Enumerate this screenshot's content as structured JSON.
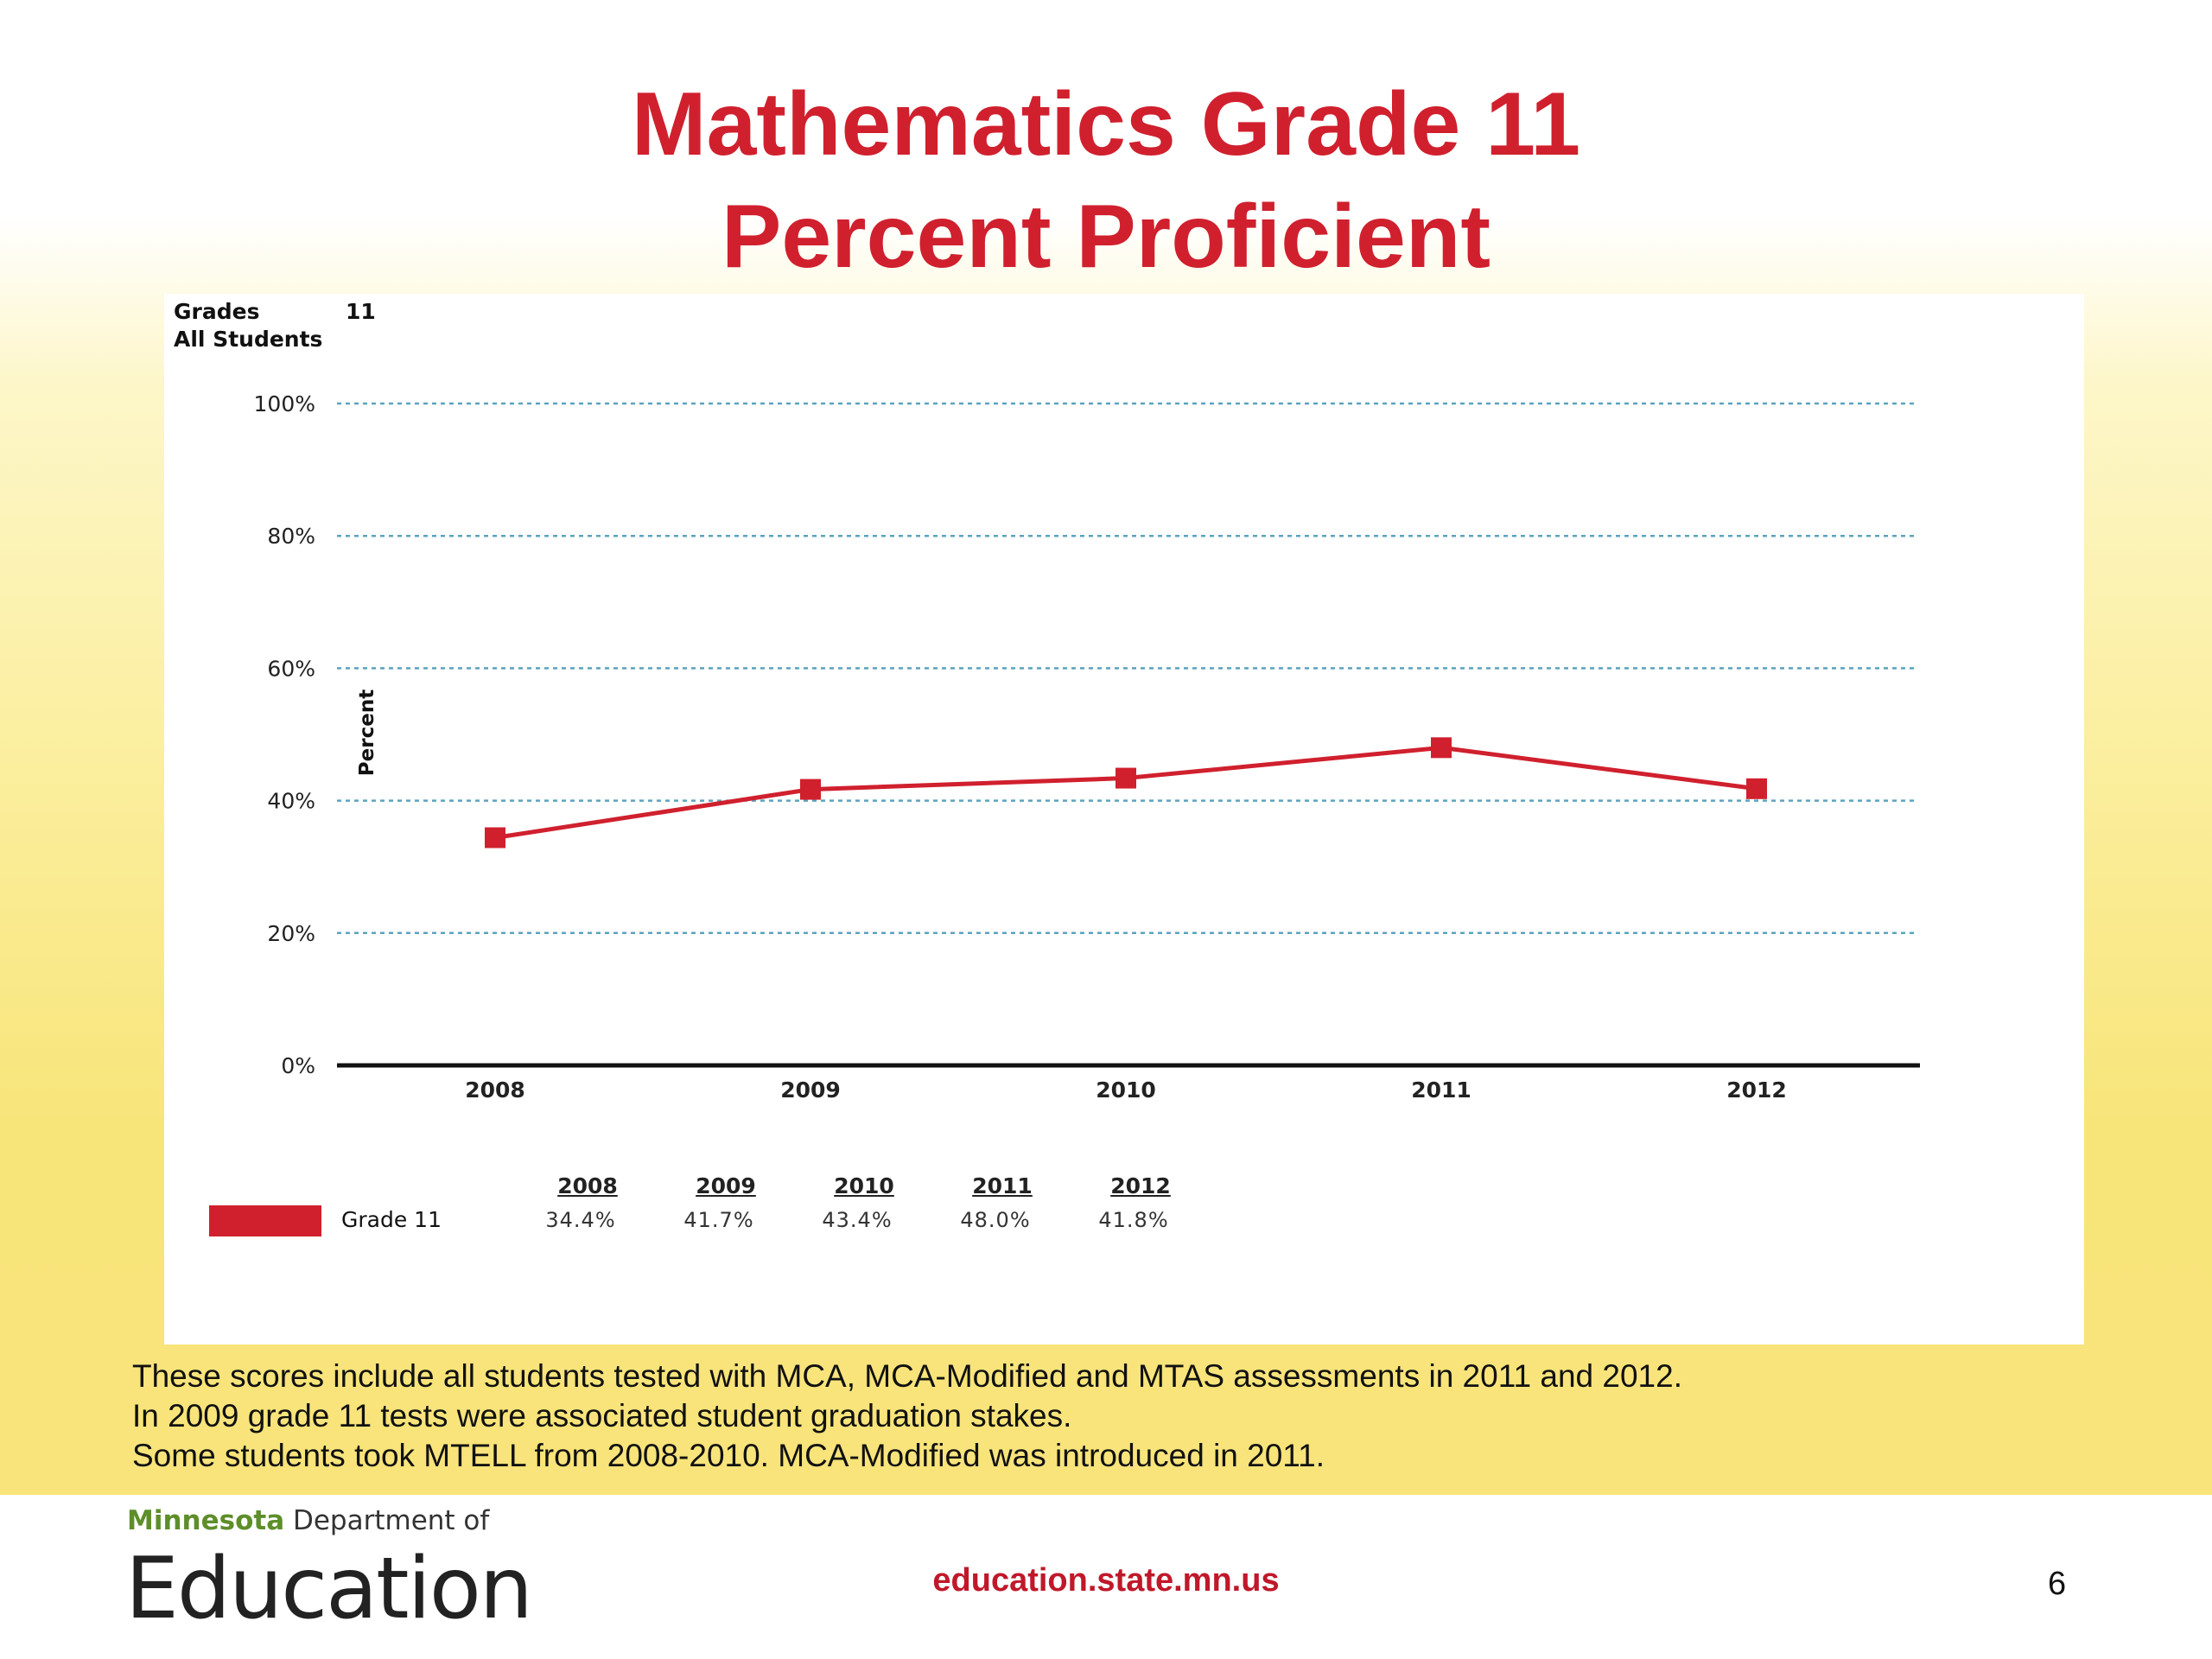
{
  "title": {
    "line1": "Mathematics Grade 11",
    "line2": "Percent Proficient"
  },
  "meta": {
    "grades_label": "Grades",
    "grades_value": "11",
    "group": "All Students"
  },
  "chart_data": {
    "type": "line",
    "title": "Mathematics Grade 11 Percent Proficient",
    "xlabel": "",
    "ylabel": "Percent",
    "categories": [
      "2008",
      "2009",
      "2010",
      "2011",
      "2012"
    ],
    "series": [
      {
        "name": "Grade 11",
        "values": [
          34.4,
          41.7,
          43.4,
          48.0,
          41.8
        ],
        "color": "#d0202e"
      }
    ],
    "ylim": [
      0,
      100
    ],
    "yticks": [
      "0%",
      "20%",
      "40%",
      "60%",
      "80%",
      "100%"
    ],
    "grid": "dashed horizontal",
    "legend_position": "bottom-left"
  },
  "table": {
    "series_label": "Grade 11",
    "years": [
      "2008",
      "2009",
      "2010",
      "2011",
      "2012"
    ],
    "values": [
      "34.4%",
      "41.7%",
      "43.4%",
      "48.0%",
      "41.8%"
    ]
  },
  "notes": [
    "These scores include all students tested with MCA, MCA-Modified and MTAS assessments in 2011 and 2012.",
    "In 2009 grade 11 tests were associated student graduation stakes.",
    "Some students took MTELL from 2008-2010.  MCA-Modified was introduced in 2011."
  ],
  "footer": {
    "org_state": "Minnesota",
    "org_dept": "Department of",
    "org_name": "Education",
    "url": "education.state.mn.us",
    "page": "6"
  },
  "colors": {
    "accent": "#d0202e",
    "grid": "#5ba3bf",
    "logo_green": "#5e8e2a"
  }
}
